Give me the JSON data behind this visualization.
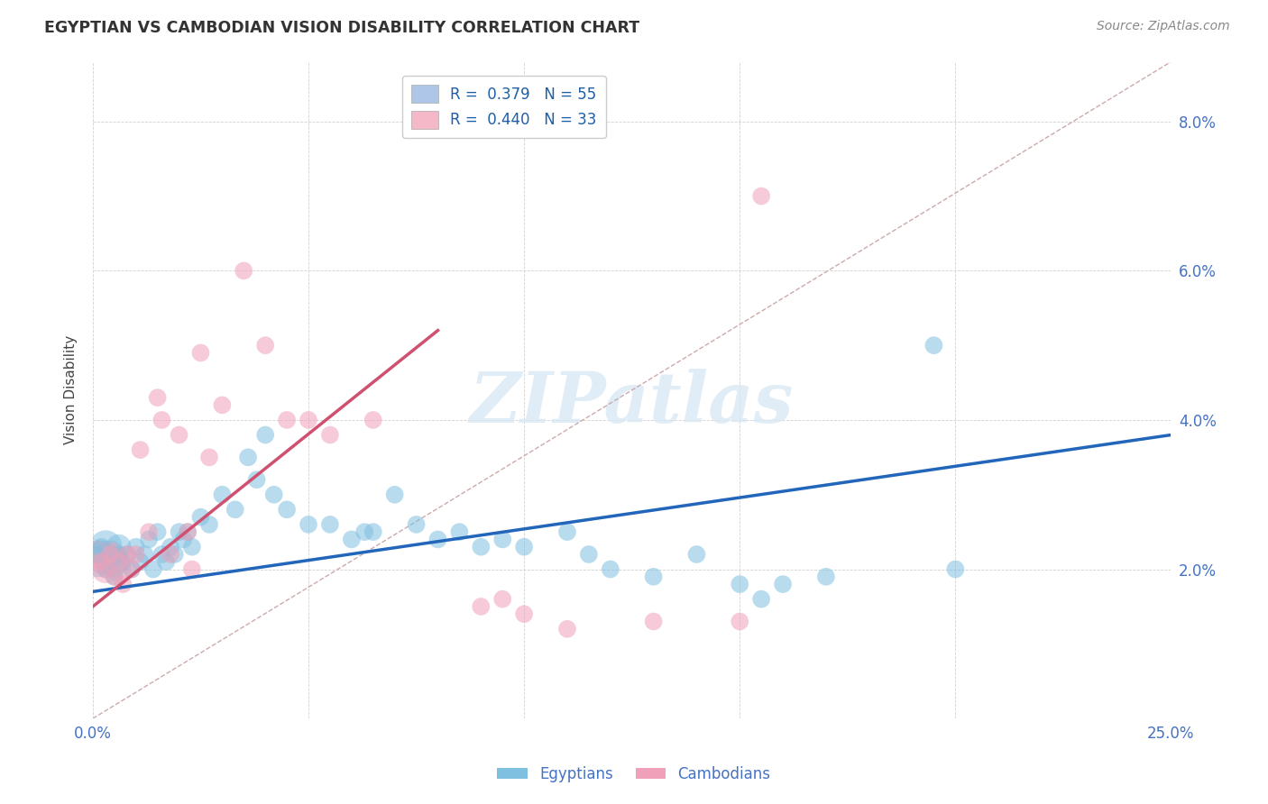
{
  "title": "EGYPTIAN VS CAMBODIAN VISION DISABILITY CORRELATION CHART",
  "source": "Source: ZipAtlas.com",
  "ylabel": "Vision Disability",
  "xlim": [
    0.0,
    0.25
  ],
  "ylim": [
    0.0,
    0.088
  ],
  "yticks": [
    0.0,
    0.02,
    0.04,
    0.06,
    0.08
  ],
  "ytick_labels_right": [
    "",
    "2.0%",
    "4.0%",
    "6.0%",
    "8.0%"
  ],
  "xticks": [
    0.0,
    0.05,
    0.1,
    0.15,
    0.2,
    0.25
  ],
  "xtick_labels": [
    "0.0%",
    "",
    "",
    "",
    "",
    "25.0%"
  ],
  "legend_entries": [
    {
      "label": "R =  0.379   N = 55",
      "color": "#aec6e8"
    },
    {
      "label": "R =  0.440   N = 33",
      "color": "#f4b8c8"
    }
  ],
  "eg_color": "#7fbfe0",
  "eg_line_color": "#2266bb",
  "cam_color": "#f0a0b8",
  "cam_line_color": "#d05070",
  "eg_line": {
    "x0": 0.0,
    "y0": 0.017,
    "x1": 0.25,
    "y1": 0.038
  },
  "cam_line": {
    "x0": 0.0,
    "y0": 0.015,
    "x1": 0.08,
    "y1": 0.052
  },
  "diag_line": {
    "x0": 0.0,
    "y0": 0.0,
    "x1": 0.25,
    "y1": 0.088
  },
  "background_color": "#ffffff",
  "grid_color": "#cccccc",
  "title_color": "#333333",
  "axis_color": "#4472c4",
  "watermark": "ZIPatlas",
  "eg_points": {
    "x": [
      0.001,
      0.002,
      0.003,
      0.004,
      0.005,
      0.006,
      0.007,
      0.008,
      0.009,
      0.01,
      0.011,
      0.012,
      0.013,
      0.014,
      0.015,
      0.016,
      0.017,
      0.018,
      0.019,
      0.02,
      0.021,
      0.022,
      0.023,
      0.025,
      0.027,
      0.03,
      0.033,
      0.036,
      0.038,
      0.04,
      0.042,
      0.045,
      0.05,
      0.055,
      0.06,
      0.063,
      0.065,
      0.07,
      0.075,
      0.08,
      0.085,
      0.09,
      0.095,
      0.1,
      0.11,
      0.115,
      0.12,
      0.13,
      0.14,
      0.15,
      0.155,
      0.16,
      0.17,
      0.2,
      0.195
    ],
    "y": [
      0.022,
      0.023,
      0.02,
      0.021,
      0.019,
      0.022,
      0.021,
      0.022,
      0.02,
      0.023,
      0.021,
      0.022,
      0.024,
      0.02,
      0.025,
      0.022,
      0.021,
      0.023,
      0.022,
      0.025,
      0.024,
      0.025,
      0.023,
      0.027,
      0.026,
      0.03,
      0.028,
      0.035,
      0.032,
      0.038,
      0.03,
      0.028,
      0.026,
      0.026,
      0.024,
      0.025,
      0.025,
      0.03,
      0.026,
      0.024,
      0.025,
      0.023,
      0.024,
      0.023,
      0.025,
      0.022,
      0.02,
      0.019,
      0.022,
      0.018,
      0.016,
      0.018,
      0.019,
      0.02,
      0.05
    ],
    "s": [
      200,
      200,
      200,
      200,
      200,
      200,
      200,
      200,
      200,
      200,
      200,
      200,
      200,
      200,
      200,
      200,
      200,
      200,
      200,
      200,
      200,
      200,
      200,
      200,
      200,
      200,
      200,
      200,
      200,
      200,
      200,
      200,
      200,
      200,
      200,
      200,
      200,
      200,
      200,
      200,
      200,
      200,
      200,
      200,
      200,
      200,
      200,
      200,
      200,
      200,
      200,
      200,
      200,
      200,
      200
    ]
  },
  "cam_points": {
    "x": [
      0.002,
      0.003,
      0.004,
      0.005,
      0.006,
      0.007,
      0.008,
      0.009,
      0.01,
      0.011,
      0.013,
      0.015,
      0.016,
      0.018,
      0.02,
      0.022,
      0.023,
      0.025,
      0.027,
      0.03,
      0.035,
      0.04,
      0.045,
      0.05,
      0.055,
      0.065,
      0.11,
      0.13,
      0.15,
      0.155,
      0.09,
      0.095,
      0.1
    ],
    "y": [
      0.021,
      0.02,
      0.022,
      0.019,
      0.021,
      0.018,
      0.022,
      0.02,
      0.022,
      0.036,
      0.025,
      0.043,
      0.04,
      0.022,
      0.038,
      0.025,
      0.02,
      0.049,
      0.035,
      0.042,
      0.06,
      0.05,
      0.04,
      0.04,
      0.038,
      0.04,
      0.012,
      0.013,
      0.013,
      0.07,
      0.015,
      0.016,
      0.014
    ],
    "s": [
      200,
      200,
      200,
      200,
      200,
      200,
      200,
      200,
      200,
      200,
      200,
      200,
      200,
      200,
      200,
      200,
      200,
      200,
      200,
      200,
      200,
      200,
      200,
      200,
      200,
      200,
      200,
      200,
      200,
      200,
      200,
      200,
      200
    ]
  },
  "large_eg_cluster": {
    "x": [
      0.001,
      0.002,
      0.003,
      0.004,
      0.005,
      0.006
    ],
    "y": [
      0.021,
      0.022,
      0.023,
      0.022,
      0.021,
      0.023
    ],
    "s": [
      600,
      500,
      700,
      500,
      600,
      400
    ]
  },
  "large_cam_cluster": {
    "x": [
      0.001,
      0.002,
      0.003,
      0.004,
      0.005,
      0.006
    ],
    "y": [
      0.022,
      0.021,
      0.02,
      0.022,
      0.021,
      0.02
    ],
    "s": [
      500,
      400,
      500,
      400,
      500,
      400
    ]
  }
}
